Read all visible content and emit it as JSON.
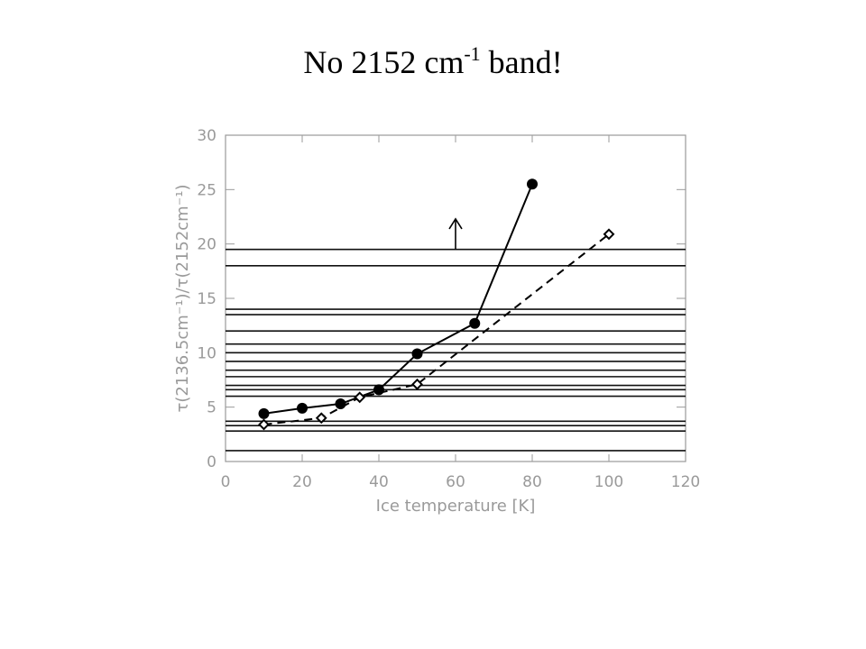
{
  "slide": {
    "title_main": "No 2152 cm",
    "title_sup": "-1",
    "title_end": " band!"
  },
  "chart_data": {
    "type": "line",
    "xlabel": "Ice temperature [K]",
    "ylabel": "τ(2136.5cm⁻¹)/τ(2152cm⁻¹)",
    "xlim": [
      0,
      120
    ],
    "ylim": [
      0,
      30
    ],
    "xticks": [
      0,
      20,
      40,
      60,
      80,
      100,
      120
    ],
    "yticks": [
      0,
      5,
      10,
      15,
      20,
      25,
      30
    ],
    "grid": false,
    "series": [
      {
        "style": "solid",
        "marker": "filled-circle",
        "x": [
          10,
          20,
          30,
          40,
          50,
          65,
          80
        ],
        "y": [
          4.4,
          4.9,
          5.3,
          6.6,
          9.9,
          12.7,
          25.5
        ]
      },
      {
        "style": "dashed",
        "marker": "open-diamond",
        "x": [
          10,
          25,
          35,
          50,
          100
        ],
        "y": [
          3.4,
          4.0,
          5.9,
          7.1,
          20.9
        ]
      }
    ],
    "horizontal_lines": [
      19.5,
      18.0,
      14.0,
      13.5,
      12.0,
      10.8,
      10.0,
      9.2,
      8.4,
      7.8,
      7.0,
      6.6,
      6.0,
      3.7,
      3.3,
      2.8,
      1.0
    ],
    "arrow": {
      "x": 60,
      "y_from": 19.5,
      "y_to": 22.3,
      "direction": "up"
    }
  }
}
